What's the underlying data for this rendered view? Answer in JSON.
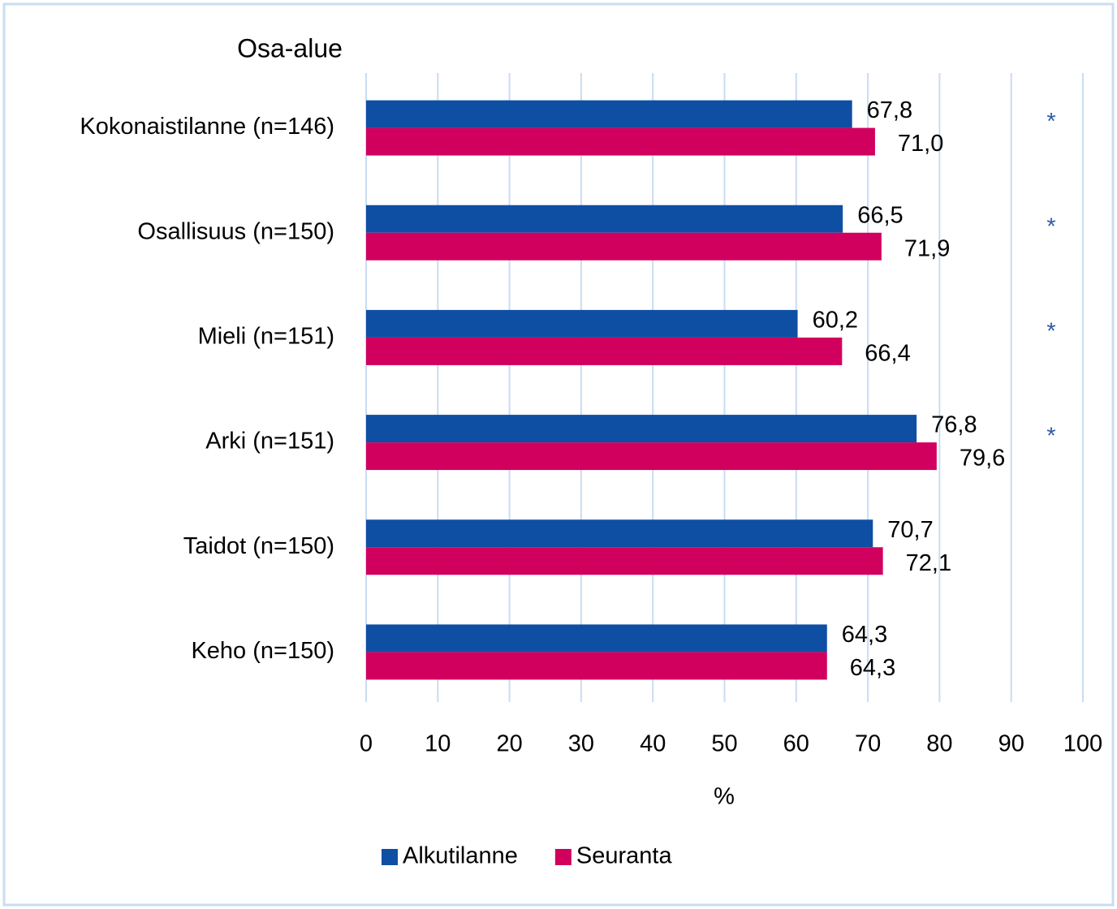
{
  "chart_data": {
    "type": "bar",
    "orientation": "horizontal",
    "y_axis_title": "Osa-alue",
    "x_axis_label": "%",
    "categories": [
      "Kokonaistilanne (n=146)",
      "Osallisuus (n=150)",
      "Mieli (n=151)",
      "Arki (n=151)",
      "Taidot (n=150)",
      "Keho (n=150)"
    ],
    "series": [
      {
        "name": "Alkutilanne",
        "color": "#0f4fa3",
        "values": [
          67.8,
          66.5,
          60.2,
          76.8,
          70.7,
          64.3
        ],
        "value_labels": [
          "67,8",
          "66,5",
          "60,2",
          "76,8",
          "70,7",
          "64,3"
        ]
      },
      {
        "name": "Seuranta",
        "color": "#d1005f",
        "values": [
          71.0,
          71.9,
          66.4,
          79.6,
          72.1,
          64.3
        ],
        "value_labels": [
          "71,0",
          "71,9",
          "66,4",
          "79,6",
          "72,1",
          "64,3"
        ]
      }
    ],
    "annotations": [
      "*",
      "*",
      "*",
      "*",
      null,
      null
    ],
    "xlim": [
      0,
      100
    ],
    "xticks": [
      0,
      10,
      20,
      30,
      40,
      50,
      60,
      70,
      80,
      90,
      100
    ],
    "grid": true,
    "grid_color": "#c9dcf2",
    "legend": "bottom"
  }
}
